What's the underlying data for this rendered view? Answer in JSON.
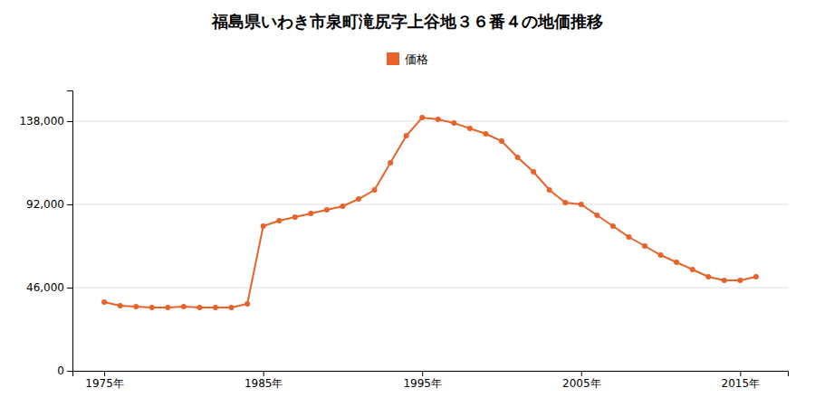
{
  "chart_data": {
    "type": "line",
    "title": "福島県いわき市泉町滝尻字上谷地３６番４の地価推移",
    "x": [
      1975,
      1976,
      1977,
      1978,
      1979,
      1980,
      1981,
      1982,
      1983,
      1984,
      1985,
      1986,
      1987,
      1988,
      1989,
      1990,
      1991,
      1992,
      1993,
      1994,
      1995,
      1996,
      1997,
      1998,
      1999,
      2000,
      2001,
      2002,
      2003,
      2004,
      2005,
      2006,
      2007,
      2008,
      2009,
      2010,
      2011,
      2012,
      2013,
      2014,
      2015,
      2016
    ],
    "series": [
      {
        "name": "価格",
        "color": "#E8622A",
        "marker": "circle",
        "values": [
          38000,
          36000,
          35500,
          35000,
          35000,
          35500,
          35000,
          35000,
          35000,
          37000,
          80000,
          83000,
          85000,
          87000,
          89000,
          91000,
          95000,
          100000,
          115000,
          130000,
          140000,
          139000,
          137000,
          134000,
          131000,
          127000,
          118000,
          110000,
          100000,
          93000,
          92000,
          86000,
          80000,
          74000,
          69000,
          64000,
          60000,
          56000,
          52000,
          50000,
          50000,
          52000
        ]
      }
    ],
    "xlim": [
      1973,
      2018
    ],
    "xticks": [
      {
        "value": 1975,
        "label": "1975年"
      },
      {
        "value": 1985,
        "label": "1985年"
      },
      {
        "value": 1995,
        "label": "1995年"
      },
      {
        "value": 2005,
        "label": "2005年"
      },
      {
        "value": 2015,
        "label": "2015年"
      }
    ],
    "ylim": [
      0,
      155000
    ],
    "yticks": [
      0,
      {
        "value": 46000,
        "label": "46,000"
      },
      {
        "value": 92000,
        "label": "92,000"
      },
      {
        "value": 138000,
        "label": "138,000"
      }
    ],
    "grid": "y",
    "legend": "top"
  }
}
